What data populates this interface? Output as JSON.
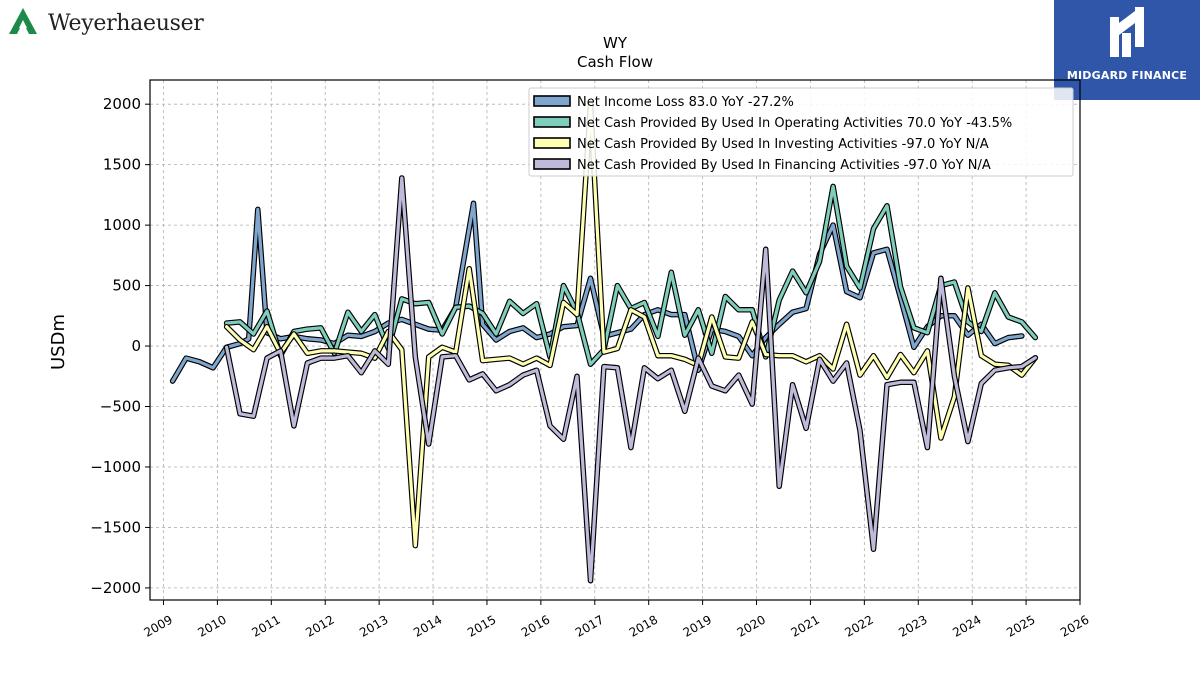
{
  "branding": {
    "company": "Weyerhaeuser",
    "badge_text": "MIDGARD FINANCE",
    "icon_names": [
      "weyerhaeuser-tree-logo-icon",
      "midgard-finance-logo-icon"
    ]
  },
  "chart_data": {
    "type": "line",
    "title": "WY",
    "subtitle": "Cash Flow",
    "ylabel": "USDm",
    "xlabel": "",
    "xlim": [
      2008.75,
      2026.0
    ],
    "ylim": [
      -2100,
      2200
    ],
    "yticks": [
      -2000,
      -1500,
      -1000,
      -500,
      0,
      500,
      1000,
      1500,
      2000
    ],
    "xticks": [
      "2009",
      "2010",
      "2011",
      "2012",
      "2013",
      "2014",
      "2015",
      "2016",
      "2017",
      "2018",
      "2019",
      "2020",
      "2021",
      "2022",
      "2023",
      "2024",
      "2025",
      "2026"
    ],
    "grid": true,
    "legend_position": "top-right",
    "series": [
      {
        "name": "Net Income Loss",
        "legend": "Net Income Loss  83.0 YoY -27.2%",
        "color": "#7ea6cf",
        "points": [
          [
            2009.17,
            -290
          ],
          [
            2009.42,
            -100
          ],
          [
            2009.67,
            -130
          ],
          [
            2009.92,
            -180
          ],
          [
            2010.17,
            -10
          ],
          [
            2010.42,
            20
          ],
          [
            2010.58,
            60
          ],
          [
            2010.75,
            1130
          ],
          [
            2010.92,
            110
          ],
          [
            2011.17,
            60
          ],
          [
            2011.42,
            80
          ],
          [
            2011.67,
            60
          ],
          [
            2011.92,
            50
          ],
          [
            2012.17,
            20
          ],
          [
            2012.42,
            90
          ],
          [
            2012.67,
            80
          ],
          [
            2012.92,
            120
          ],
          [
            2013.17,
            190
          ],
          [
            2013.42,
            220
          ],
          [
            2013.67,
            180
          ],
          [
            2013.92,
            140
          ],
          [
            2014.17,
            130
          ],
          [
            2014.42,
            320
          ],
          [
            2014.75,
            1180
          ],
          [
            2014.92,
            180
          ],
          [
            2015.17,
            50
          ],
          [
            2015.42,
            120
          ],
          [
            2015.67,
            150
          ],
          [
            2015.92,
            70
          ],
          [
            2016.17,
            100
          ],
          [
            2016.42,
            160
          ],
          [
            2016.67,
            170
          ],
          [
            2016.92,
            560
          ],
          [
            2017.17,
            80
          ],
          [
            2017.42,
            110
          ],
          [
            2017.67,
            140
          ],
          [
            2017.92,
            260
          ],
          [
            2018.17,
            300
          ],
          [
            2018.42,
            260
          ],
          [
            2018.67,
            260
          ],
          [
            2018.92,
            -200
          ],
          [
            2019.17,
            140
          ],
          [
            2019.42,
            120
          ],
          [
            2019.67,
            80
          ],
          [
            2019.92,
            -80
          ],
          [
            2020.17,
            70
          ],
          [
            2020.42,
            180
          ],
          [
            2020.67,
            280
          ],
          [
            2020.92,
            310
          ],
          [
            2021.17,
            760
          ],
          [
            2021.42,
            1000
          ],
          [
            2021.67,
            450
          ],
          [
            2021.92,
            400
          ],
          [
            2022.17,
            770
          ],
          [
            2022.42,
            800
          ],
          [
            2022.67,
            400
          ],
          [
            2022.92,
            -10
          ],
          [
            2023.17,
            160
          ],
          [
            2023.42,
            250
          ],
          [
            2023.67,
            250
          ],
          [
            2023.92,
            90
          ],
          [
            2024.17,
            180
          ],
          [
            2024.42,
            20
          ],
          [
            2024.67,
            70
          ],
          [
            2024.92,
            83
          ]
        ]
      },
      {
        "name": "Net Cash Provided By Used In Operating Activities",
        "legend": "Net Cash Provided By Used In Operating Activities  70.0 YoY -43.5%",
        "color": "#7fcdbb",
        "points": [
          [
            2010.17,
            190
          ],
          [
            2010.42,
            200
          ],
          [
            2010.67,
            100
          ],
          [
            2010.92,
            290
          ],
          [
            2011.17,
            -80
          ],
          [
            2011.42,
            120
          ],
          [
            2011.67,
            140
          ],
          [
            2011.92,
            150
          ],
          [
            2012.17,
            -60
          ],
          [
            2012.42,
            280
          ],
          [
            2012.67,
            120
          ],
          [
            2012.92,
            260
          ],
          [
            2013.17,
            -20
          ],
          [
            2013.42,
            390
          ],
          [
            2013.67,
            350
          ],
          [
            2013.92,
            360
          ],
          [
            2014.17,
            100
          ],
          [
            2014.42,
            320
          ],
          [
            2014.67,
            330
          ],
          [
            2014.92,
            270
          ],
          [
            2015.17,
            100
          ],
          [
            2015.42,
            370
          ],
          [
            2015.67,
            270
          ],
          [
            2015.92,
            350
          ],
          [
            2016.17,
            -90
          ],
          [
            2016.42,
            500
          ],
          [
            2016.67,
            280
          ],
          [
            2016.92,
            -150
          ],
          [
            2017.17,
            -30
          ],
          [
            2017.42,
            500
          ],
          [
            2017.67,
            310
          ],
          [
            2017.92,
            360
          ],
          [
            2018.17,
            80
          ],
          [
            2018.42,
            610
          ],
          [
            2018.67,
            90
          ],
          [
            2018.92,
            300
          ],
          [
            2019.17,
            -60
          ],
          [
            2019.42,
            410
          ],
          [
            2019.67,
            300
          ],
          [
            2019.92,
            300
          ],
          [
            2020.17,
            -90
          ],
          [
            2020.42,
            380
          ],
          [
            2020.67,
            620
          ],
          [
            2020.92,
            440
          ],
          [
            2021.17,
            700
          ],
          [
            2021.42,
            1320
          ],
          [
            2021.67,
            660
          ],
          [
            2021.92,
            480
          ],
          [
            2022.17,
            970
          ],
          [
            2022.42,
            1160
          ],
          [
            2022.67,
            490
          ],
          [
            2022.92,
            150
          ],
          [
            2023.17,
            110
          ],
          [
            2023.42,
            500
          ],
          [
            2023.67,
            530
          ],
          [
            2023.92,
            200
          ],
          [
            2024.17,
            120
          ],
          [
            2024.42,
            440
          ],
          [
            2024.67,
            240
          ],
          [
            2024.92,
            200
          ],
          [
            2025.17,
            70
          ]
        ]
      },
      {
        "name": "Net Cash Provided By Used In Investing Activities",
        "legend": "Net Cash Provided By Used In Investing Activities  -97.0 YoY N/A",
        "color": "#ffffb3",
        "points": [
          [
            2010.17,
            160
          ],
          [
            2010.42,
            50
          ],
          [
            2010.67,
            -30
          ],
          [
            2010.92,
            160
          ],
          [
            2011.17,
            -60
          ],
          [
            2011.42,
            100
          ],
          [
            2011.67,
            -60
          ],
          [
            2011.92,
            -40
          ],
          [
            2012.17,
            -40
          ],
          [
            2012.42,
            -50
          ],
          [
            2012.67,
            -60
          ],
          [
            2012.92,
            -100
          ],
          [
            2013.17,
            120
          ],
          [
            2013.42,
            -30
          ],
          [
            2013.67,
            -1650
          ],
          [
            2013.92,
            -90
          ],
          [
            2014.17,
            -10
          ],
          [
            2014.42,
            -50
          ],
          [
            2014.67,
            640
          ],
          [
            2014.92,
            -120
          ],
          [
            2015.17,
            -110
          ],
          [
            2015.42,
            -100
          ],
          [
            2015.67,
            -150
          ],
          [
            2015.92,
            -100
          ],
          [
            2016.17,
            -160
          ],
          [
            2016.42,
            360
          ],
          [
            2016.67,
            260
          ],
          [
            2016.92,
            2000
          ],
          [
            2017.17,
            -50
          ],
          [
            2017.42,
            -20
          ],
          [
            2017.67,
            300
          ],
          [
            2017.92,
            240
          ],
          [
            2018.17,
            -80
          ],
          [
            2018.42,
            -80
          ],
          [
            2018.67,
            -110
          ],
          [
            2018.92,
            -160
          ],
          [
            2019.17,
            240
          ],
          [
            2019.42,
            -90
          ],
          [
            2019.67,
            -100
          ],
          [
            2019.92,
            200
          ],
          [
            2020.17,
            -70
          ],
          [
            2020.42,
            -80
          ],
          [
            2020.67,
            -80
          ],
          [
            2020.92,
            -130
          ],
          [
            2021.17,
            -80
          ],
          [
            2021.42,
            -190
          ],
          [
            2021.67,
            180
          ],
          [
            2021.92,
            -240
          ],
          [
            2022.17,
            -80
          ],
          [
            2022.42,
            -260
          ],
          [
            2022.67,
            -70
          ],
          [
            2022.92,
            -220
          ],
          [
            2023.17,
            -40
          ],
          [
            2023.42,
            -760
          ],
          [
            2023.67,
            -420
          ],
          [
            2023.92,
            480
          ],
          [
            2024.17,
            -80
          ],
          [
            2024.42,
            -150
          ],
          [
            2024.67,
            -160
          ],
          [
            2024.92,
            -240
          ],
          [
            2025.17,
            -97
          ]
        ]
      },
      {
        "name": "Net Cash Provided By Used In Financing Activities",
        "legend": "Net Cash Provided By Used In Financing Activities  -97.0 YoY N/A",
        "color": "#bebada",
        "points": [
          [
            2010.17,
            -10
          ],
          [
            2010.42,
            -560
          ],
          [
            2010.67,
            -580
          ],
          [
            2010.92,
            -100
          ],
          [
            2011.17,
            -40
          ],
          [
            2011.42,
            -660
          ],
          [
            2011.67,
            -140
          ],
          [
            2011.92,
            -100
          ],
          [
            2012.17,
            -100
          ],
          [
            2012.42,
            -80
          ],
          [
            2012.67,
            -220
          ],
          [
            2012.92,
            -40
          ],
          [
            2013.17,
            -150
          ],
          [
            2013.42,
            1390
          ],
          [
            2013.67,
            -90
          ],
          [
            2013.92,
            -810
          ],
          [
            2014.17,
            -90
          ],
          [
            2014.42,
            -80
          ],
          [
            2014.67,
            -280
          ],
          [
            2014.92,
            -230
          ],
          [
            2015.17,
            -370
          ],
          [
            2015.42,
            -320
          ],
          [
            2015.67,
            -240
          ],
          [
            2015.92,
            -200
          ],
          [
            2016.17,
            -660
          ],
          [
            2016.42,
            -770
          ],
          [
            2016.67,
            -250
          ],
          [
            2016.92,
            -1940
          ],
          [
            2017.17,
            -170
          ],
          [
            2017.42,
            -180
          ],
          [
            2017.67,
            -840
          ],
          [
            2017.92,
            -180
          ],
          [
            2018.17,
            -270
          ],
          [
            2018.42,
            -200
          ],
          [
            2018.67,
            -540
          ],
          [
            2018.92,
            -100
          ],
          [
            2019.17,
            -330
          ],
          [
            2019.42,
            -370
          ],
          [
            2019.67,
            -240
          ],
          [
            2019.92,
            -480
          ],
          [
            2020.17,
            800
          ],
          [
            2020.42,
            -1160
          ],
          [
            2020.67,
            -320
          ],
          [
            2020.92,
            -680
          ],
          [
            2021.17,
            -110
          ],
          [
            2021.42,
            -290
          ],
          [
            2021.67,
            -140
          ],
          [
            2021.92,
            -700
          ],
          [
            2022.17,
            -1680
          ],
          [
            2022.42,
            -320
          ],
          [
            2022.67,
            -300
          ],
          [
            2022.92,
            -300
          ],
          [
            2023.17,
            -840
          ],
          [
            2023.42,
            560
          ],
          [
            2023.67,
            -250
          ],
          [
            2023.92,
            -790
          ],
          [
            2024.17,
            -310
          ],
          [
            2024.42,
            -200
          ],
          [
            2024.67,
            -180
          ],
          [
            2024.92,
            -170
          ],
          [
            2025.17,
            -97
          ]
        ]
      }
    ]
  }
}
